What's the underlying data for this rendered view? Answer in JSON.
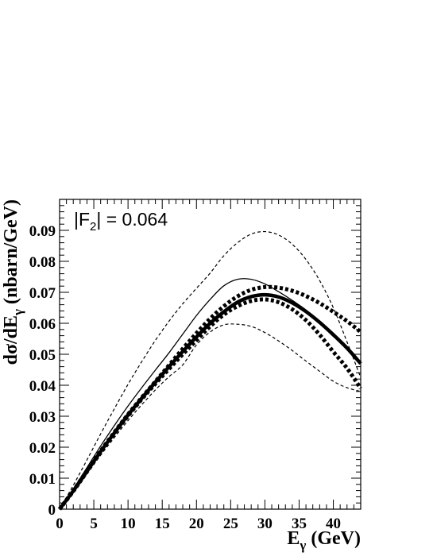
{
  "chart_data": {
    "type": "line",
    "annotation": {
      "pre": "|F",
      "sub": "2",
      "post": "| = 0.064"
    },
    "xlabel": {
      "main": "E",
      "sub": "γ",
      "rest": " (GeV)"
    },
    "ylabel": {
      "main": "dσ/dE",
      "sub": "γ",
      "rest": " (nbarn/GeV)"
    },
    "xlim": [
      0,
      44
    ],
    "ylim": [
      0,
      0.1
    ],
    "xticks": [
      0,
      5,
      10,
      15,
      20,
      25,
      30,
      35,
      40
    ],
    "xtick_labels": [
      "0",
      "5",
      "10",
      "15",
      "20",
      "25",
      "30",
      "35",
      "40"
    ],
    "yticks": [
      0,
      0.01,
      0.02,
      0.03,
      0.04,
      0.05,
      0.06,
      0.07,
      0.08,
      0.09
    ],
    "ytick_labels": [
      "0",
      "0.01",
      "0.02",
      "0.03",
      "0.04",
      "0.05",
      "0.06",
      "0.07",
      "0.08",
      "0.09"
    ],
    "grid": false,
    "legend": "none",
    "series": [
      {
        "style": "thin-dashed-upper",
        "x": [
          0,
          2,
          4,
          6,
          8,
          10,
          12,
          14,
          16,
          18,
          20,
          22,
          24,
          26,
          28,
          30,
          32,
          34,
          36,
          38,
          40,
          42,
          44
        ],
        "y": [
          0,
          0.0077,
          0.0159,
          0.0243,
          0.0324,
          0.0403,
          0.0476,
          0.0545,
          0.0607,
          0.0663,
          0.0713,
          0.0762,
          0.0818,
          0.086,
          0.0888,
          0.0896,
          0.0885,
          0.0855,
          0.0806,
          0.0738,
          0.065,
          0.054,
          0.0425
        ]
      },
      {
        "style": "thin-solid",
        "x": [
          0,
          2,
          4,
          6,
          8,
          10,
          12,
          14,
          16,
          18,
          20,
          22,
          24,
          26,
          28,
          30,
          32,
          34,
          36,
          38,
          40,
          42,
          44
        ],
        "y": [
          0,
          0.0065,
          0.0134,
          0.0204,
          0.027,
          0.0333,
          0.0392,
          0.0449,
          0.0505,
          0.0565,
          0.0625,
          0.0677,
          0.0721,
          0.0742,
          0.0742,
          0.0727,
          0.0702,
          0.0674,
          0.0643,
          0.0606,
          0.0565,
          0.052,
          0.0472
        ]
      },
      {
        "style": "thick-dotted-upper",
        "x": [
          0,
          2,
          4,
          6,
          8,
          10,
          12,
          14,
          16,
          18,
          20,
          22,
          24,
          26,
          28,
          30,
          32,
          34,
          36,
          38,
          40,
          42,
          44
        ],
        "y": [
          0,
          0.006,
          0.0124,
          0.0188,
          0.0248,
          0.0306,
          0.036,
          0.0412,
          0.0465,
          0.0518,
          0.0568,
          0.0615,
          0.0655,
          0.0687,
          0.0708,
          0.0717,
          0.0715,
          0.0705,
          0.0688,
          0.0665,
          0.0637,
          0.0607,
          0.0572
        ]
      },
      {
        "style": "thick-solid",
        "x": [
          0,
          2,
          4,
          6,
          8,
          10,
          12,
          14,
          16,
          18,
          20,
          22,
          24,
          26,
          28,
          30,
          32,
          34,
          36,
          38,
          40,
          42,
          44
        ],
        "y": [
          0,
          0.0059,
          0.0122,
          0.0186,
          0.0246,
          0.0304,
          0.0358,
          0.041,
          0.046,
          0.0509,
          0.0556,
          0.06,
          0.0637,
          0.0668,
          0.0686,
          0.0692,
          0.0685,
          0.0666,
          0.0638,
          0.0603,
          0.0563,
          0.052,
          0.047
        ]
      },
      {
        "style": "thick-dotted-lower",
        "x": [
          0,
          2,
          4,
          6,
          8,
          10,
          12,
          14,
          16,
          18,
          20,
          22,
          24,
          26,
          28,
          30,
          32,
          34,
          36,
          38,
          40,
          42,
          44
        ],
        "y": [
          0,
          0.0058,
          0.0121,
          0.0184,
          0.0244,
          0.0301,
          0.0355,
          0.0405,
          0.0453,
          0.05,
          0.0545,
          0.059,
          0.0628,
          0.0655,
          0.0672,
          0.0677,
          0.0668,
          0.0645,
          0.061,
          0.0563,
          0.0508,
          0.0455,
          0.039
        ]
      },
      {
        "style": "thin-dashed-lower",
        "x": [
          0,
          2,
          4,
          6,
          8,
          10,
          12,
          14,
          16,
          18,
          20,
          22,
          24,
          26,
          28,
          30,
          32,
          34,
          36,
          38,
          40,
          42,
          44
        ],
        "y": [
          0,
          0.0055,
          0.0114,
          0.0174,
          0.0231,
          0.0286,
          0.0337,
          0.0385,
          0.0428,
          0.0466,
          0.053,
          0.0572,
          0.0595,
          0.0597,
          0.059,
          0.057,
          0.0543,
          0.0512,
          0.0478,
          0.0445,
          0.0413,
          0.0392,
          0.038
        ]
      }
    ]
  }
}
